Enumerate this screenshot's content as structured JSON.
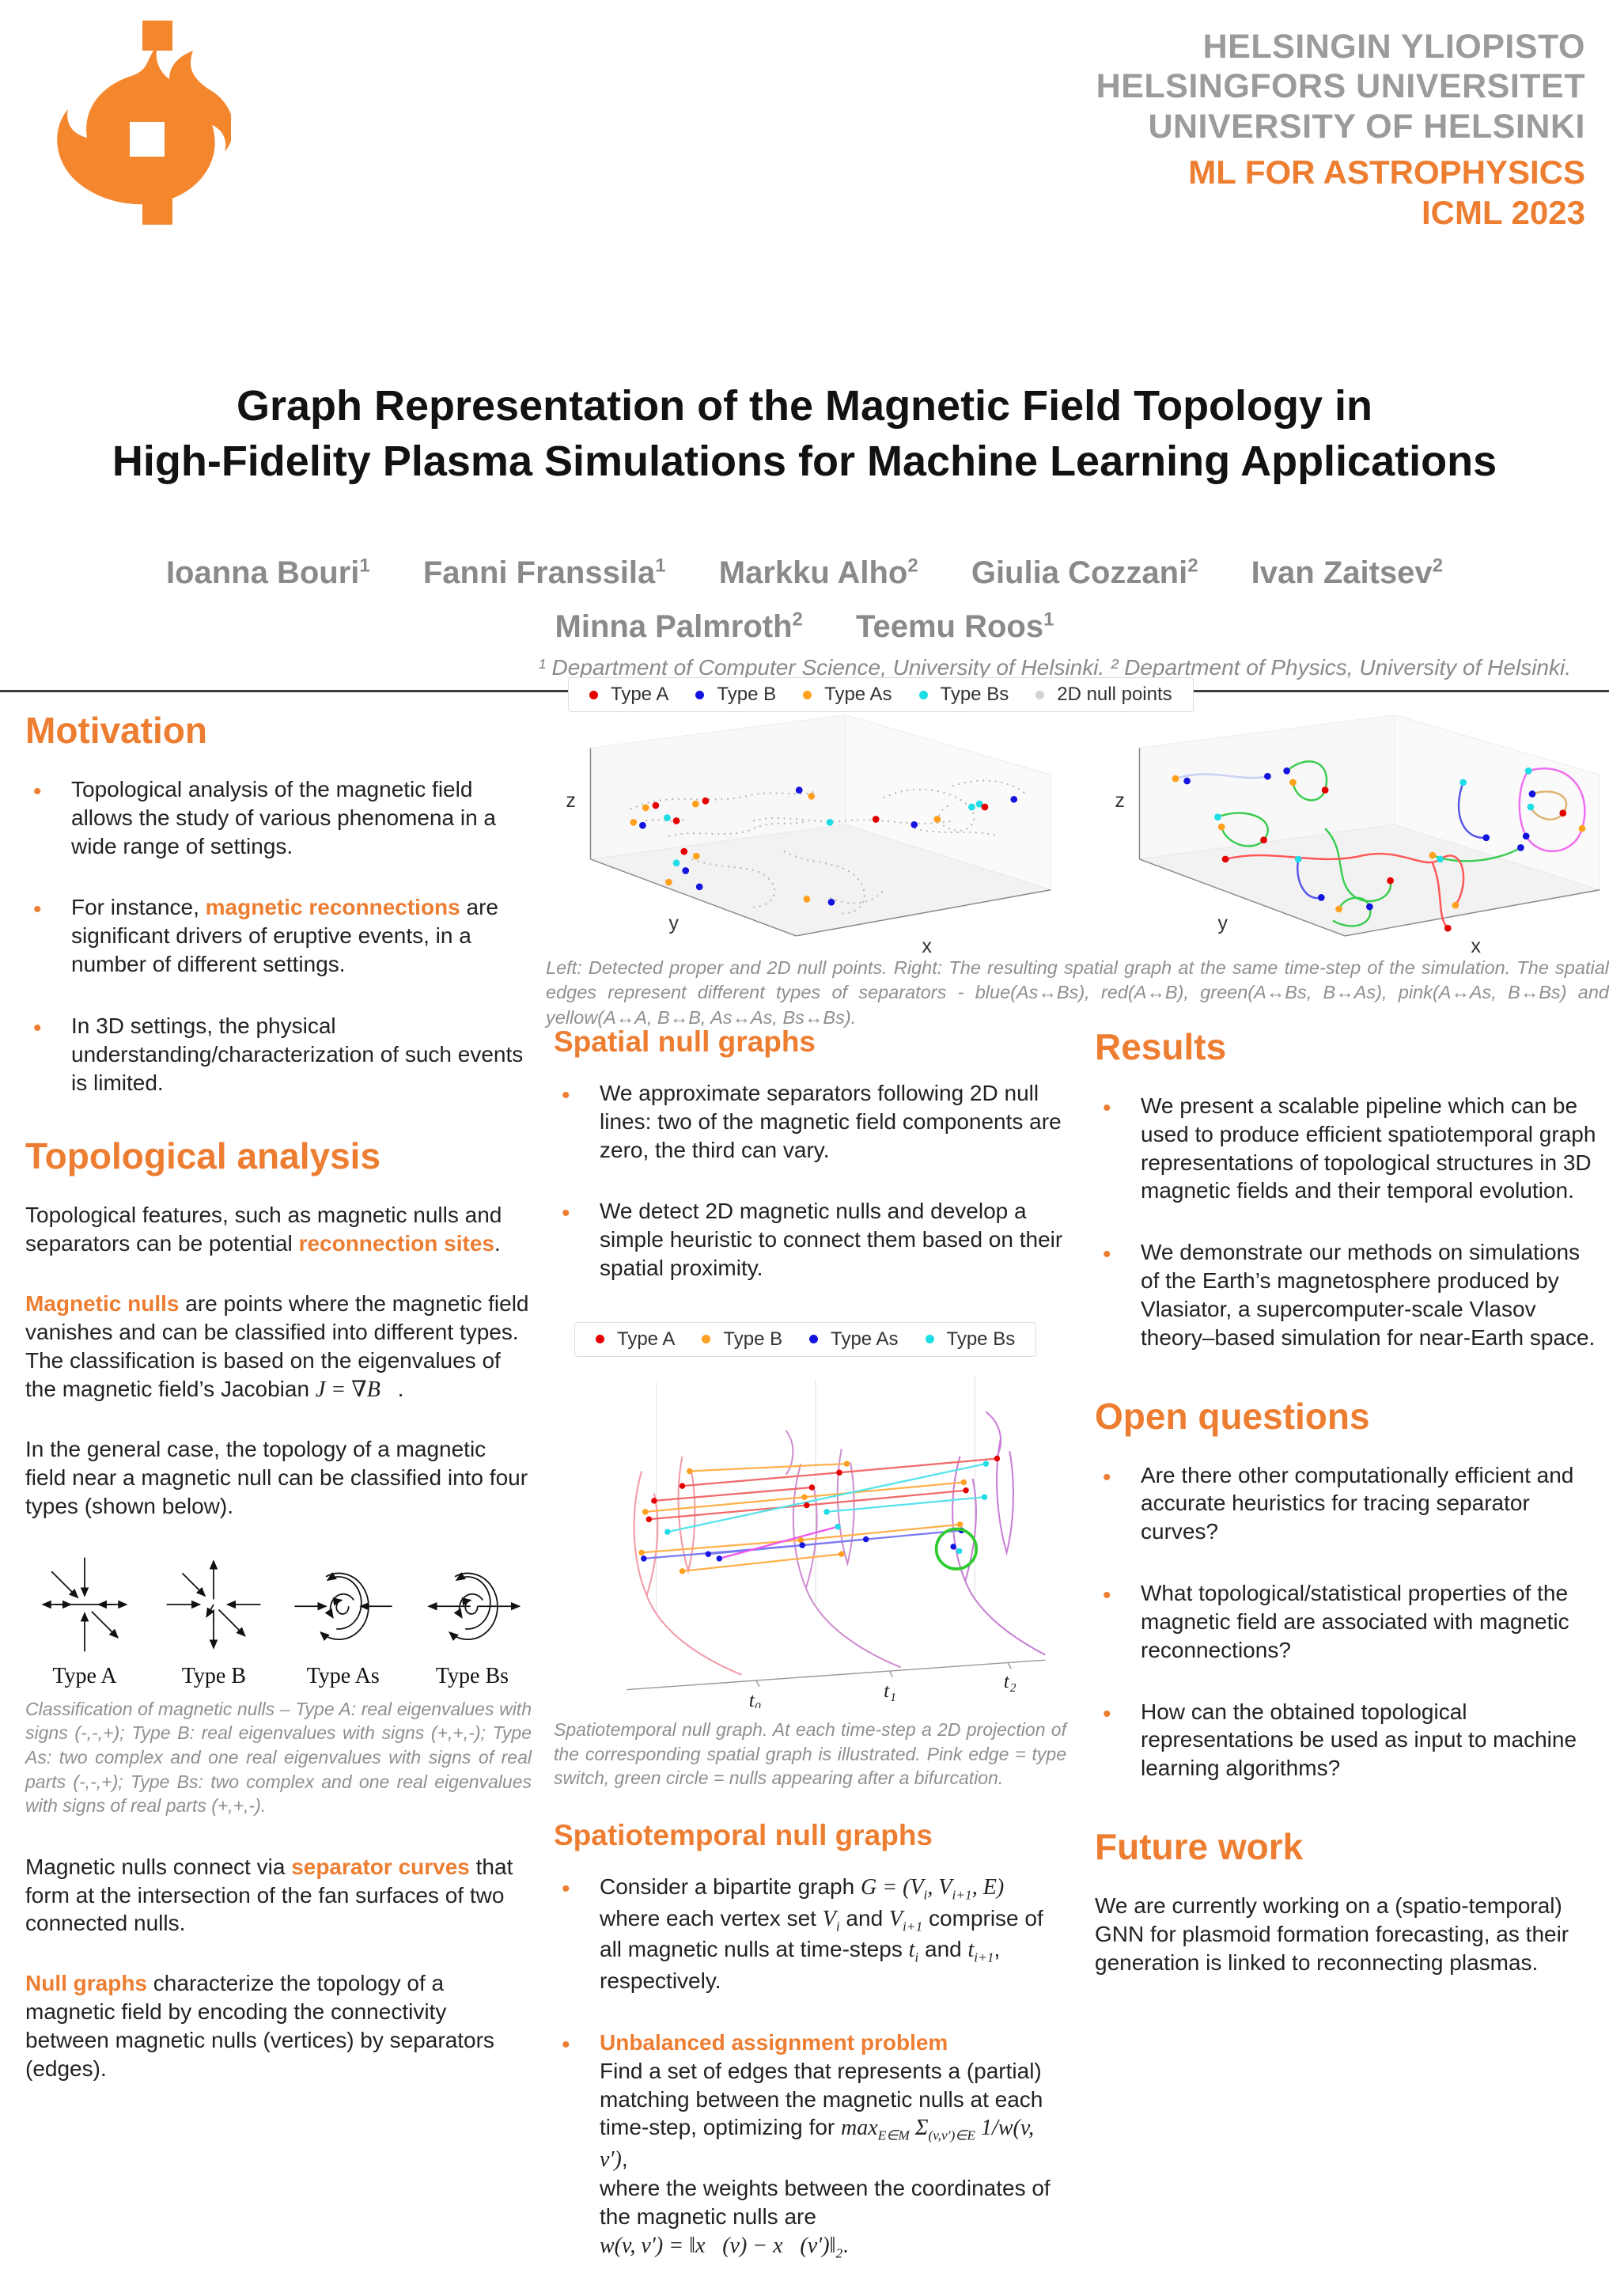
{
  "accent": "#ED7D31",
  "header": {
    "university_lines": [
      "HELSINGIN YLIOPISTO",
      "HELSINGFORS UNIVERSITET",
      "UNIVERSITY OF HELSINKI"
    ],
    "event_lines": [
      "ML FOR ASTROPHYSICS",
      "ICML 2023"
    ],
    "logo": "university-of-helsinki-flame"
  },
  "title_block": {
    "title_line1": "Graph Representation of the Magnetic Field Topology in",
    "title_line2": "High-Fidelity Plasma Simulations for Machine Learning Applications",
    "authors": [
      {
        "name": "Ioanna Bouri",
        "sup": "1"
      },
      {
        "name": "Fanni Franssila",
        "sup": "1"
      },
      {
        "name": "Markku Alho",
        "sup": "2"
      },
      {
        "name": "Giulia Cozzani",
        "sup": "2"
      },
      {
        "name": "Ivan Zaitsev",
        "sup": "2"
      },
      {
        "name": "Minna Palmroth",
        "sup": "2"
      },
      {
        "name": "Teemu Roos",
        "sup": "1"
      }
    ],
    "affiliation": "¹ Department of Computer Science, University of Helsinki. ² Department of Physics, University of Helsinki."
  },
  "motivation": {
    "heading": "Motivation",
    "bullets": [
      [
        {
          "t": "Topological analysis of the magnetic field allows the study of various phenomena in a wide range of settings."
        }
      ],
      [
        {
          "t": "For instance, "
        },
        {
          "t": "magnetic reconnections",
          "hl": true
        },
        {
          "t": " are significant drivers of eruptive events, in a number of different settings."
        }
      ],
      [
        {
          "t": "In 3D settings, the physical understanding/characterization of such events is limited."
        }
      ]
    ]
  },
  "topological_analysis": {
    "heading": "Topological analysis",
    "paragraphs": [
      [
        {
          "t": "Topological features, such as magnetic nulls and separators can be potential "
        },
        {
          "t": "reconnection sites",
          "hl": true
        },
        {
          "t": "."
        }
      ],
      [
        {
          "t": "Magnetic nulls",
          "hl": true
        },
        {
          "t": " are points where the magnetic field vanishes and can be classified into different types. The classification is based on the eigenvalues of the magnetic field’s Jacobian "
        },
        {
          "t": "J",
          "math": true
        },
        {
          "t": " = ∇",
          "math": true
        },
        {
          "t": "B⃗",
          "math": true
        },
        {
          "t": "."
        }
      ],
      [
        {
          "t": "In the general case, the topology of a magnetic field near a magnetic null can be classified into four types (shown below)."
        }
      ]
    ],
    "null_types": [
      "Type A",
      "Type B",
      "Type As",
      "Type Bs"
    ],
    "caption": "Classification of magnetic nulls – Type A: real eigenvalues with signs (-,-,+); Type B: real eigenvalues with signs (+,+,-); Type As: two complex and one real eigenvalues with signs of real parts (-,-,+); Type Bs: two complex and one real eigenvalues with signs of real parts (+,+,-).",
    "paragraphs2": [
      [
        {
          "t": "Magnetic nulls connect via "
        },
        {
          "t": "separator curves",
          "hl": true
        },
        {
          "t": " that form at the intersection of the fan surfaces of two connected nulls."
        }
      ],
      [
        {
          "t": "Null graphs",
          "hl": true
        },
        {
          "t": " characterize the topology of a magnetic field by encoding the connectivity between magnetic nulls (vertices) by separators (edges)."
        }
      ]
    ]
  },
  "figures": {
    "fig1": {
      "legend": [
        {
          "label": "Type A",
          "color": "#e50000"
        },
        {
          "label": "Type B",
          "color": "#1414e0"
        },
        {
          "label": "Type As",
          "color": "#ffa01e"
        },
        {
          "label": "Type Bs",
          "color": "#1fdde6"
        },
        {
          "label": "2D null points",
          "color": "#d4d4d4"
        }
      ],
      "axes": {
        "x": "x",
        "y": "y",
        "z": "z"
      },
      "caption": "Left: Detected proper and 2D null points. Right: The resulting spatial graph at the same time-step of the simulation. The spatial edges represent different types of separators - blue(As↔Bs), red(A↔B), green(A↔Bs, B↔As), pink(A↔As, B↔Bs) and yellow(A↔A, B↔B, As↔As, Bs↔Bs)."
    },
    "fig2": {
      "legend": [
        {
          "label": "Type A",
          "color": "#e50000"
        },
        {
          "label": "Type B",
          "color": "#ffa01e"
        },
        {
          "label": "Type As",
          "color": "#1414e0"
        },
        {
          "label": "Type Bs",
          "color": "#1fdde6"
        }
      ],
      "time_labels": [
        "t₀",
        "t₁",
        "t₂"
      ],
      "caption": "Spatiotemporal null graph. At each time-step a 2D projection of the corresponding spatial graph is illustrated. Pink edge = type switch, green circle = nulls appearing after a bifurcation."
    }
  },
  "spatial_null_graphs": {
    "heading": "Spatial null graphs",
    "bullets": [
      [
        {
          "t": "We approximate separators following 2D null lines: two of the magnetic field components are zero, the third can vary."
        }
      ],
      [
        {
          "t": "We detect 2D magnetic nulls and develop a simple heuristic to connect them based on their spatial proximity."
        }
      ]
    ]
  },
  "spatiotemporal_null_graphs": {
    "heading": "Spatiotemporal null graphs",
    "bullets": [
      [
        {
          "t": "Consider a bipartite graph "
        },
        {
          "t": "G",
          "math": true
        },
        {
          "t": " = (",
          "math": true
        },
        {
          "t": "V",
          "math": true
        },
        {
          "t": "i",
          "sub": true,
          "math": true
        },
        {
          "t": ", ",
          "math": true
        },
        {
          "t": "V",
          "math": true
        },
        {
          "t": "i+1",
          "sub": true,
          "math": true
        },
        {
          "t": ", ",
          "math": true
        },
        {
          "t": "E",
          "math": true
        },
        {
          "t": ")",
          "math": true
        },
        {
          "t": " where each vertex set "
        },
        {
          "t": "V",
          "math": true
        },
        {
          "t": "i",
          "sub": true,
          "math": true
        },
        {
          "t": " and "
        },
        {
          "t": "V",
          "math": true
        },
        {
          "t": "i+1",
          "sub": true,
          "math": true
        },
        {
          "t": " comprise of all magnetic nulls at  time-steps "
        },
        {
          "t": "t",
          "math": true
        },
        {
          "t": "i",
          "sub": true,
          "math": true
        },
        {
          "t": " and "
        },
        {
          "t": "t",
          "math": true
        },
        {
          "t": "i+1",
          "sub": true,
          "math": true
        },
        {
          "t": ", respectively."
        }
      ],
      [
        {
          "t": "Unbalanced assignment problem",
          "hl": true
        },
        {
          "br": true
        },
        {
          "t": "Find a set of edges that represents a (partial) matching between the magnetic nulls at each time-step, optimizing for "
        },
        {
          "t": "max",
          "math": true
        },
        {
          "t": "E∈M",
          "sub": true,
          "math": true
        },
        {
          "t": " Σ",
          "math": true
        },
        {
          "t": "(v,v′)∈E",
          "sub": true,
          "math": true
        },
        {
          "t": " 1/",
          "math": true
        },
        {
          "t": "w(v, v′)",
          "math": true
        },
        {
          "t": ","
        },
        {
          "br": true
        },
        {
          "t": "where the weights between the coordinates of the magnetic nulls are"
        },
        {
          "br": true
        },
        {
          "t": "w(v, v′) = ‖x⃗(v) − x⃗(v′)‖",
          "math": true
        },
        {
          "t": "2",
          "sub": true,
          "math": true
        },
        {
          "t": "."
        }
      ]
    ]
  },
  "results": {
    "heading": "Results",
    "bullets": [
      [
        {
          "t": "We present a scalable pipeline which can be used to produce efficient spatiotemporal graph representations of topological structures in 3D magnetic fields and their temporal evolution."
        }
      ],
      [
        {
          "t": "We demonstrate our methods on simulations of the Earth’s magnetosphere produced by Vlasiator, a supercomputer-scale Vlasov theory–based simulation for near-Earth space."
        }
      ]
    ]
  },
  "open_questions": {
    "heading": "Open questions",
    "bullets": [
      [
        {
          "t": "Are there other computationally efficient and accurate heuristics for tracing separator curves?"
        }
      ],
      [
        {
          "t": "What topological/statistical properties of the magnetic field are associated with magnetic reconnections?"
        }
      ],
      [
        {
          "t": "How can the obtained topological representations be used as input to machine learning algorithms?"
        }
      ]
    ]
  },
  "future_work": {
    "heading": "Future work",
    "paragraph": [
      [
        {
          "t": "We are currently working on a (spatio-temporal) GNN for plasmoid formation forecasting, as their generation is linked to reconnecting plasmas."
        }
      ]
    ]
  }
}
